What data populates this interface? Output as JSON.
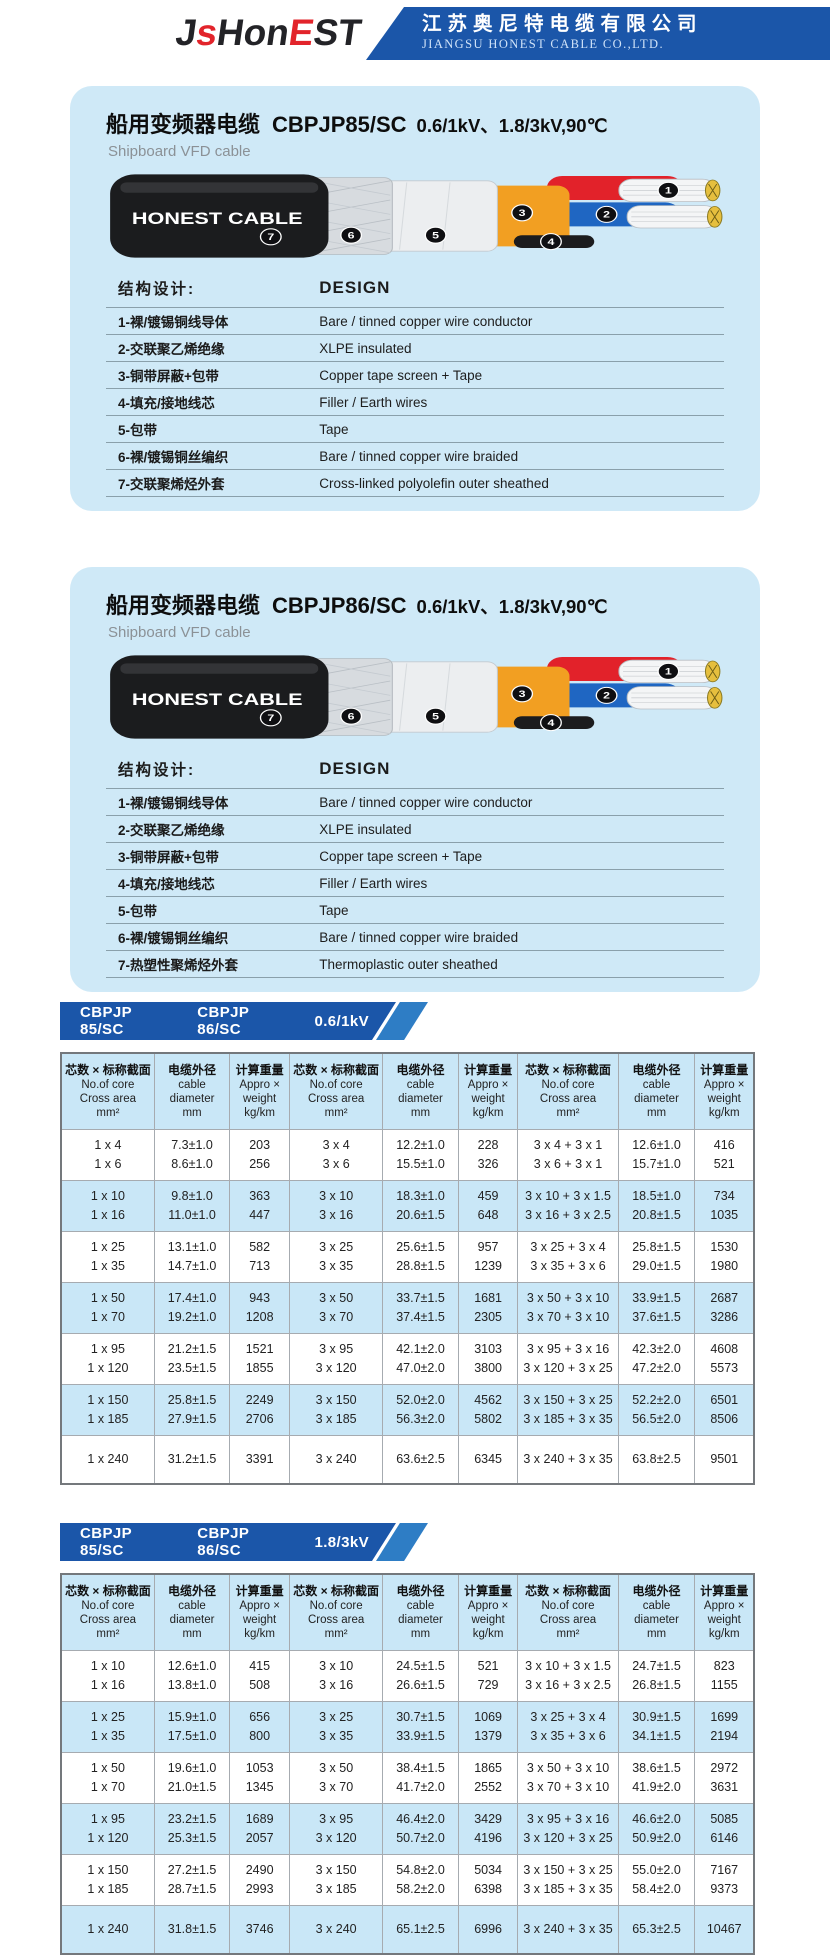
{
  "header": {
    "logo_parts": [
      {
        "text": "J",
        "color": "dark"
      },
      {
        "text": "s",
        "color": "red"
      },
      {
        "text": "Hon",
        "color": "dark"
      },
      {
        "text": "E",
        "color": "red"
      },
      {
        "text": "ST",
        "color": "dark"
      }
    ],
    "company_cn": "江苏奥尼特电缆有限公司",
    "company_en": "JIANGSU HONEST CABLE CO.,LTD."
  },
  "colors": {
    "banner_blue": "#1b56a9",
    "band_accent_blue": "#2e7dc5",
    "card_bg": "#cfe9f7",
    "table_blue_row": "#c9e7f7",
    "logo_red": "#e2242b"
  },
  "cable": {
    "brand": "HONEST CABLE",
    "badges": [
      "1",
      "2",
      "3",
      "4",
      "5",
      "6",
      "7"
    ]
  },
  "products": [
    {
      "title_cn": "船用变频器电缆",
      "model": "CBPJP85/SC",
      "spec": "0.6/1kV、1.8/3kV,90℃",
      "subtitle": "Shipboard VFD cable",
      "design_header_cn": "结构设计:",
      "design_header_en": "DESIGN",
      "design_rows": [
        {
          "cn": "1-裸/镀锡铜线导体",
          "en": "Bare / tinned copper wire conductor"
        },
        {
          "cn": "2-交联聚乙烯绝缘",
          "en": "XLPE insulated"
        },
        {
          "cn": "3-铜带屏蔽+包带",
          "en": "Copper tape screen + Tape"
        },
        {
          "cn": "4-填充/接地线芯",
          "en": "Filler / Earth wires"
        },
        {
          "cn": "5-包带",
          "en": "Tape"
        },
        {
          "cn": "6-裸/镀锡铜丝编织",
          "en": "Bare / tinned copper wire braided"
        },
        {
          "cn": "7-交联聚烯烃外套",
          "en": "Cross-linked polyolefin outer sheathed"
        }
      ]
    },
    {
      "title_cn": "船用变频器电缆",
      "model": "CBPJP86/SC",
      "spec": "0.6/1kV、1.8/3kV,90℃",
      "subtitle": "Shipboard VFD cable",
      "design_header_cn": "结构设计:",
      "design_header_en": "DESIGN",
      "design_rows": [
        {
          "cn": "1-裸/镀锡铜线导体",
          "en": "Bare / tinned copper wire conductor"
        },
        {
          "cn": "2-交联聚乙烯绝缘",
          "en": "XLPE insulated"
        },
        {
          "cn": "3-铜带屏蔽+包带",
          "en": "Copper tape screen + Tape"
        },
        {
          "cn": "4-填充/接地线芯",
          "en": "Filler / Earth wires"
        },
        {
          "cn": "5-包带",
          "en": "Tape"
        },
        {
          "cn": "6-裸/镀锡铜丝编织",
          "en": "Bare / tinned copper wire braided"
        },
        {
          "cn": "7-热塑性聚烯烃外套",
          "en": "Thermoplastic outer sheathed"
        }
      ]
    }
  ],
  "table_header": {
    "groups": [
      {
        "cn": "芯数 × 标称截面",
        "en1": "No.of core",
        "en2": "Cross area",
        "unit": "mm²"
      },
      {
        "cn": "电缆外径",
        "en1": "cable",
        "en2": "diameter",
        "unit": "mm"
      },
      {
        "cn": "计算重量",
        "en1": "Appro ×",
        "en2": "weight",
        "unit": "kg/km"
      }
    ]
  },
  "tables": [
    {
      "band": {
        "model1": "CBPJP 85/SC",
        "model2": "CBPJP 86/SC",
        "voltage": "0.6/1kV"
      },
      "groups": [
        {
          "shade": "white",
          "rows": [
            [
              "1 x 4",
              "7.3±1.0",
              "203",
              "3 x 4",
              "12.2±1.0",
              "228",
              "3 x 4 + 3 x 1",
              "12.6±1.0",
              "416"
            ],
            [
              "1 x 6",
              "8.6±1.0",
              "256",
              "3 x 6",
              "15.5±1.0",
              "326",
              "3 x 6 + 3 x 1",
              "15.7±1.0",
              "521"
            ]
          ]
        },
        {
          "shade": "blue",
          "rows": [
            [
              "1 x 10",
              "9.8±1.0",
              "363",
              "3 x 10",
              "18.3±1.0",
              "459",
              "3 x 10 + 3 x 1.5",
              "18.5±1.0",
              "734"
            ],
            [
              "1 x 16",
              "11.0±1.0",
              "447",
              "3 x 16",
              "20.6±1.5",
              "648",
              "3 x 16 + 3 x 2.5",
              "20.8±1.5",
              "1035"
            ]
          ]
        },
        {
          "shade": "white",
          "rows": [
            [
              "1 x 25",
              "13.1±1.0",
              "582",
              "3 x 25",
              "25.6±1.5",
              "957",
              "3 x 25 + 3 x 4",
              "25.8±1.5",
              "1530"
            ],
            [
              "1 x 35",
              "14.7±1.0",
              "713",
              "3 x 35",
              "28.8±1.5",
              "1239",
              "3 x 35 + 3 x 6",
              "29.0±1.5",
              "1980"
            ]
          ]
        },
        {
          "shade": "blue",
          "rows": [
            [
              "1 x 50",
              "17.4±1.0",
              "943",
              "3 x 50",
              "33.7±1.5",
              "1681",
              "3 x 50 + 3 x 10",
              "33.9±1.5",
              "2687"
            ],
            [
              "1 x 70",
              "19.2±1.0",
              "1208",
              "3 x 70",
              "37.4±1.5",
              "2305",
              "3 x 70 + 3 x 10",
              "37.6±1.5",
              "3286"
            ]
          ]
        },
        {
          "shade": "white",
          "rows": [
            [
              "1 x 95",
              "21.2±1.5",
              "1521",
              "3 x 95",
              "42.1±2.0",
              "3103",
              "3 x 95 + 3 x 16",
              "42.3±2.0",
              "4608"
            ],
            [
              "1 x 120",
              "23.5±1.5",
              "1855",
              "3 x 120",
              "47.0±2.0",
              "3800",
              "3 x 120 + 3 x 25",
              "47.2±2.0",
              "5573"
            ]
          ]
        },
        {
          "shade": "blue",
          "rows": [
            [
              "1 x 150",
              "25.8±1.5",
              "2249",
              "3 x 150",
              "52.0±2.0",
              "4562",
              "3 x 150 + 3 x 25",
              "52.2±2.0",
              "6501"
            ],
            [
              "1 x 185",
              "27.9±1.5",
              "2706",
              "3 x 185",
              "56.3±2.0",
              "5802",
              "3 x 185 + 3 x 35",
              "56.5±2.0",
              "8506"
            ]
          ]
        },
        {
          "shade": "white",
          "rows": [
            [
              "1 x 240",
              "31.2±1.5",
              "3391",
              "3 x 240",
              "63.6±2.5",
              "6345",
              "3 x 240 + 3 x 35",
              "63.8±2.5",
              "9501"
            ]
          ]
        }
      ]
    },
    {
      "band": {
        "model1": "CBPJP 85/SC",
        "model2": "CBPJP 86/SC",
        "voltage": "1.8/3kV"
      },
      "groups": [
        {
          "shade": "white",
          "rows": [
            [
              "1 x 10",
              "12.6±1.0",
              "415",
              "3 x 10",
              "24.5±1.5",
              "521",
              "3 x 10 + 3 x 1.5",
              "24.7±1.5",
              "823"
            ],
            [
              "1 x 16",
              "13.8±1.0",
              "508",
              "3 x 16",
              "26.6±1.5",
              "729",
              "3 x 16 + 3 x 2.5",
              "26.8±1.5",
              "1155"
            ]
          ]
        },
        {
          "shade": "blue",
          "rows": [
            [
              "1 x 25",
              "15.9±1.0",
              "656",
              "3 x 25",
              "30.7±1.5",
              "1069",
              "3 x 25 + 3 x 4",
              "30.9±1.5",
              "1699"
            ],
            [
              "1 x 35",
              "17.5±1.0",
              "800",
              "3 x 35",
              "33.9±1.5",
              "1379",
              "3 x 35 + 3 x 6",
              "34.1±1.5",
              "2194"
            ]
          ]
        },
        {
          "shade": "white",
          "rows": [
            [
              "1 x 50",
              "19.6±1.0",
              "1053",
              "3 x 50",
              "38.4±1.5",
              "1865",
              "3 x 50 + 3 x 10",
              "38.6±1.5",
              "2972"
            ],
            [
              "1 x 70",
              "21.0±1.5",
              "1345",
              "3 x 70",
              "41.7±2.0",
              "2552",
              "3 x 70 + 3 x 10",
              "41.9±2.0",
              "3631"
            ]
          ]
        },
        {
          "shade": "blue",
          "rows": [
            [
              "1 x 95",
              "23.2±1.5",
              "1689",
              "3 x 95",
              "46.4±2.0",
              "3429",
              "3 x 95 + 3 x 16",
              "46.6±2.0",
              "5085"
            ],
            [
              "1 x 120",
              "25.3±1.5",
              "2057",
              "3 x 120",
              "50.7±2.0",
              "4196",
              "3 x 120 + 3 x 25",
              "50.9±2.0",
              "6146"
            ]
          ]
        },
        {
          "shade": "white",
          "rows": [
            [
              "1 x 150",
              "27.2±1.5",
              "2490",
              "3 x 150",
              "54.8±2.0",
              "5034",
              "3 x 150 + 3 x 25",
              "55.0±2.0",
              "7167"
            ],
            [
              "1 x 185",
              "28.7±1.5",
              "2993",
              "3 x 185",
              "58.2±2.0",
              "6398",
              "3 x 185 + 3 x 35",
              "58.4±2.0",
              "9373"
            ]
          ]
        },
        {
          "shade": "blue",
          "rows": [
            [
              "1 x 240",
              "31.8±1.5",
              "3746",
              "3 x 240",
              "65.1±2.5",
              "6996",
              "3 x 240 + 3 x 35",
              "65.3±2.5",
              "10467"
            ]
          ]
        }
      ]
    }
  ]
}
